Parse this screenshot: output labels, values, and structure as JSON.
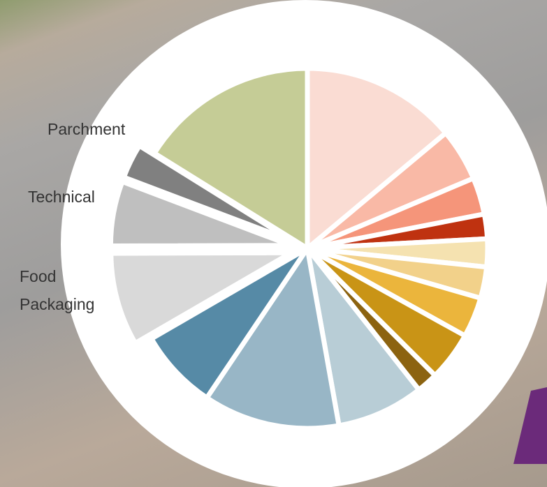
{
  "chart_data": {
    "type": "pie",
    "categories": [
      null,
      null,
      null,
      null,
      null,
      null,
      null,
      null,
      null,
      null,
      null,
      null,
      "Food Packaging",
      "Technical",
      "Parchment",
      null
    ],
    "values": [
      13.9,
      4.7,
      3.3,
      2.2,
      2.5,
      2.8,
      3.6,
      4.4,
      1.9,
      7.8,
      12.2,
      7.2,
      8.3,
      5.8,
      3.1,
      16.1
    ],
    "colors": [
      "#fadcd3",
      "#f9b9a6",
      "#f5957a",
      "#bf3210",
      "#f5e2b0",
      "#f2d18a",
      "#ebb53c",
      "#c99416",
      "#8c6310",
      "#b8cdd6",
      "#98b6c6",
      "#568aa6",
      "#d9d9d9",
      "#bfbfbf",
      "#808080",
      "#c5cc96"
    ]
  }
}
